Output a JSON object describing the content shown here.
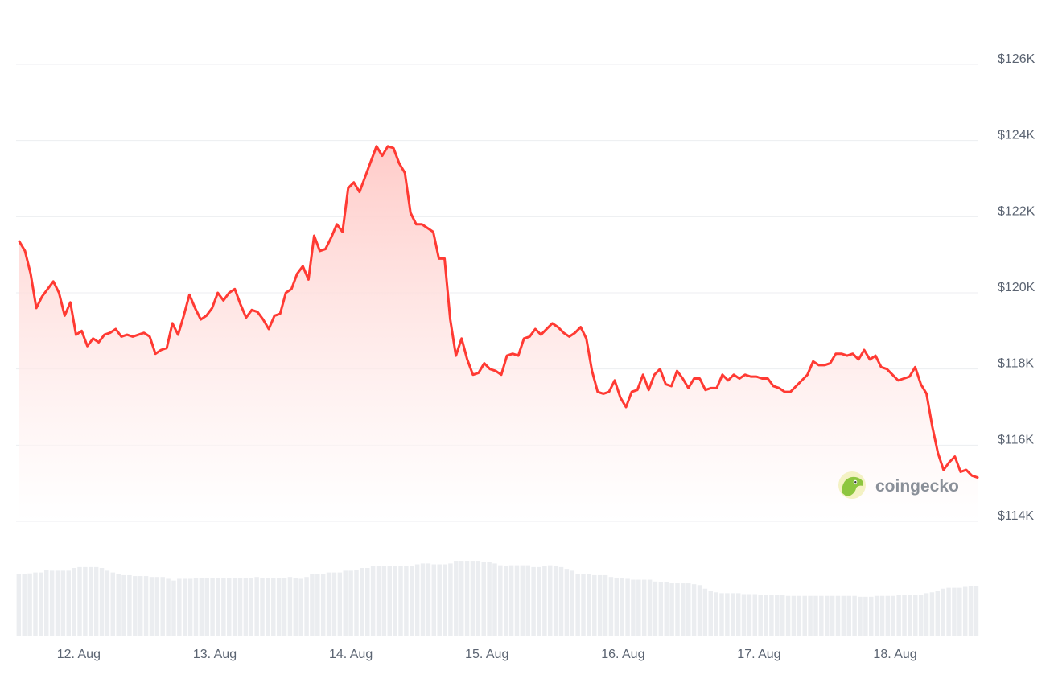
{
  "chart_data": {
    "type": "area",
    "series": [
      {
        "values": [
          121.35,
          121.1,
          120.5,
          119.6,
          119.9,
          120.1,
          120.3,
          120.0,
          119.4,
          119.75,
          118.9,
          119.0,
          118.6,
          118.8,
          118.7,
          118.9,
          118.95,
          119.05,
          118.85,
          118.9,
          118.85,
          118.9,
          118.95,
          118.85,
          118.4,
          118.5,
          118.55,
          119.2,
          118.9,
          119.4,
          119.95,
          119.6,
          119.3,
          119.4,
          119.6,
          120.0,
          119.8,
          120.0,
          120.1,
          119.7,
          119.35,
          119.55,
          119.5,
          119.3,
          119.05,
          119.4,
          119.45,
          120.0,
          120.1,
          120.5,
          120.7,
          120.35,
          121.5,
          121.1,
          121.15,
          121.45,
          121.8,
          121.6,
          122.75,
          122.9,
          122.65,
          123.05,
          123.45,
          123.85,
          123.6,
          123.85,
          123.8,
          123.4,
          123.15,
          122.1,
          121.8,
          121.8,
          121.7,
          121.6,
          120.9,
          120.9,
          119.3,
          118.35,
          118.8,
          118.25,
          117.85,
          117.9,
          118.15,
          118.0,
          117.95,
          117.85,
          118.35,
          118.4,
          118.35,
          118.8,
          118.85,
          119.05,
          118.9,
          119.05,
          119.2,
          119.1,
          118.95,
          118.85,
          118.95,
          119.1,
          118.8,
          117.95,
          117.4,
          117.35,
          117.4,
          117.7,
          117.25,
          117.0,
          117.4,
          117.45,
          117.85,
          117.45,
          117.85,
          118.0,
          117.6,
          117.55,
          117.95,
          117.75,
          117.5,
          117.75,
          117.75,
          117.45,
          117.5,
          117.5,
          117.85,
          117.7,
          117.85,
          117.75,
          117.85,
          117.8,
          117.8,
          117.75,
          117.75,
          117.55,
          117.5,
          117.4,
          117.4,
          117.55,
          117.7,
          117.85,
          118.2,
          118.1,
          118.1,
          118.15,
          118.4,
          118.4,
          118.35,
          118.4,
          118.25,
          118.5,
          118.25,
          118.35,
          118.05,
          118.0,
          117.85,
          117.7,
          117.75,
          117.8,
          118.05,
          117.6,
          117.35,
          116.5,
          115.8,
          115.35,
          115.55,
          115.7,
          115.3,
          115.35,
          115.2,
          115.15
        ]
      }
    ],
    "volume": [
      0.68,
      0.68,
      0.69,
      0.7,
      0.7,
      0.73,
      0.72,
      0.72,
      0.72,
      0.72,
      0.75,
      0.76,
      0.76,
      0.76,
      0.76,
      0.75,
      0.72,
      0.7,
      0.68,
      0.67,
      0.67,
      0.66,
      0.66,
      0.66,
      0.65,
      0.65,
      0.65,
      0.63,
      0.61,
      0.63,
      0.63,
      0.63,
      0.64,
      0.64,
      0.64,
      0.64,
      0.64,
      0.64,
      0.64,
      0.64,
      0.64,
      0.64,
      0.64,
      0.65,
      0.64,
      0.64,
      0.64,
      0.64,
      0.64,
      0.65,
      0.64,
      0.63,
      0.65,
      0.68,
      0.68,
      0.68,
      0.7,
      0.7,
      0.7,
      0.72,
      0.72,
      0.73,
      0.75,
      0.75,
      0.77,
      0.77,
      0.77,
      0.77,
      0.77,
      0.77,
      0.77,
      0.77,
      0.79,
      0.8,
      0.8,
      0.79,
      0.79,
      0.79,
      0.8,
      0.83,
      0.83,
      0.83,
      0.83,
      0.83,
      0.82,
      0.82,
      0.8,
      0.78,
      0.77,
      0.78,
      0.78,
      0.78,
      0.78,
      0.76,
      0.76,
      0.77,
      0.78,
      0.77,
      0.76,
      0.74,
      0.72,
      0.68,
      0.68,
      0.68,
      0.67,
      0.67,
      0.67,
      0.65,
      0.64,
      0.64,
      0.63,
      0.62,
      0.62,
      0.62,
      0.62,
      0.6,
      0.59,
      0.59,
      0.58,
      0.58,
      0.58,
      0.58,
      0.57,
      0.56,
      0.52,
      0.5,
      0.48,
      0.47,
      0.47,
      0.47,
      0.47,
      0.46,
      0.46,
      0.46,
      0.45,
      0.45,
      0.45,
      0.45,
      0.45,
      0.44,
      0.44,
      0.44,
      0.44,
      0.44,
      0.44,
      0.44,
      0.44,
      0.44,
      0.44,
      0.44,
      0.44,
      0.44,
      0.43,
      0.43,
      0.43,
      0.44,
      0.44,
      0.44,
      0.44,
      0.45,
      0.45,
      0.45,
      0.45,
      0.45,
      0.47,
      0.48,
      0.5,
      0.52,
      0.53,
      0.53,
      0.53,
      0.54,
      0.55,
      0.55
    ],
    "x_ticks": [
      {
        "label": "12. Aug",
        "t": 0.062
      },
      {
        "label": "13. Aug",
        "t": 0.204
      },
      {
        "label": "14. Aug",
        "t": 0.346
      },
      {
        "label": "15. Aug",
        "t": 0.488
      },
      {
        "label": "16. Aug",
        "t": 0.63
      },
      {
        "label": "17. Aug",
        "t": 0.772
      },
      {
        "label": "18. Aug",
        "t": 0.914
      }
    ],
    "y_ticks": [
      {
        "label": "$126K",
        "value": 126
      },
      {
        "label": "$124K",
        "value": 124
      },
      {
        "label": "$122K",
        "value": 122
      },
      {
        "label": "$120K",
        "value": 120
      },
      {
        "label": "$118K",
        "value": 118
      },
      {
        "label": "$116K",
        "value": 116
      },
      {
        "label": "$114K",
        "value": 114
      }
    ],
    "ylim": [
      114,
      126
    ],
    "grid": true,
    "colors": {
      "line": "#ff3a33",
      "fill_top": "#ffc9c6",
      "grid": "#eceef1",
      "volume": "#ebedf0",
      "axis_text": "#5b6472"
    }
  },
  "watermark": {
    "text": "coingecko",
    "icon": "gecko-logo-icon"
  }
}
